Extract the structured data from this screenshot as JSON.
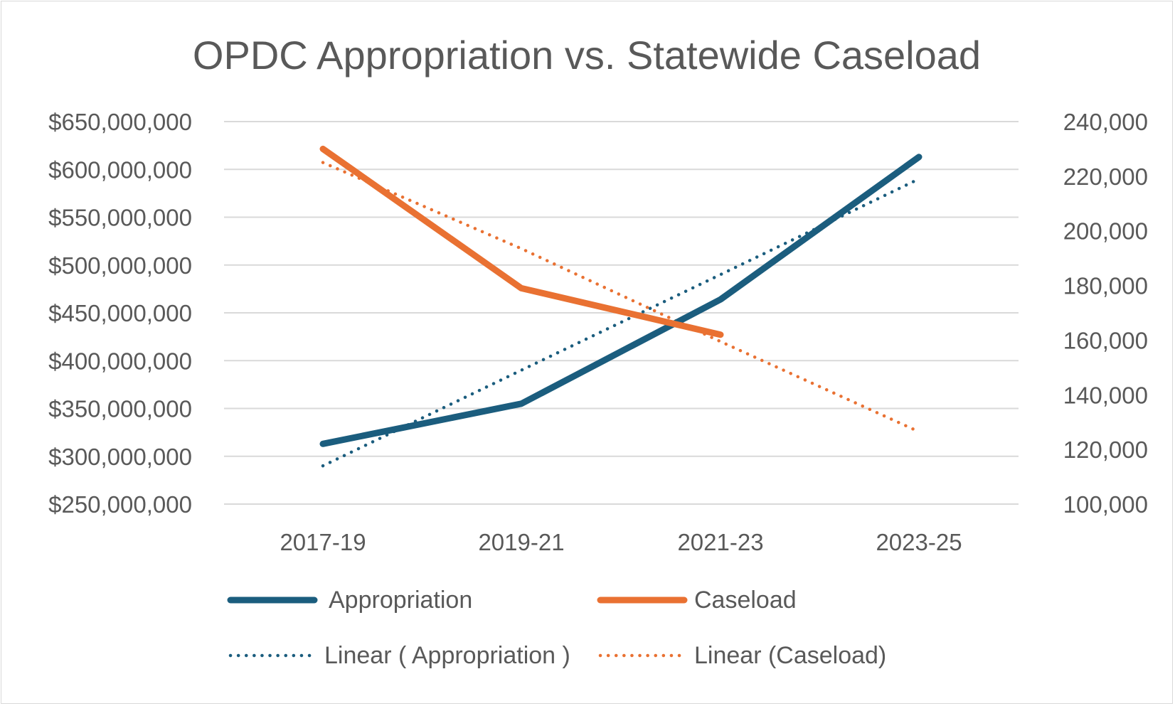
{
  "chart_data": {
    "type": "line",
    "title": "OPDC Appropriation vs. Statewide Caseload",
    "categories": [
      "2017-19",
      "2019-21",
      "2021-23",
      "2023-25"
    ],
    "y_left": {
      "range": [
        250000000,
        650000000
      ],
      "ticks": [
        250000000,
        300000000,
        350000000,
        400000000,
        450000000,
        500000000,
        550000000,
        600000000,
        650000000
      ],
      "tick_labels": [
        "$250,000,000",
        "$300,000,000",
        "$350,000,000",
        "$400,000,000",
        "$450,000,000",
        "$500,000,000",
        "$550,000,000",
        "$600,000,000",
        "$650,000,000"
      ]
    },
    "y_right": {
      "range": [
        100000,
        240000
      ],
      "ticks": [
        100000,
        120000,
        140000,
        160000,
        180000,
        200000,
        220000,
        240000
      ],
      "tick_labels": [
        "100,000",
        "120,000",
        "140,000",
        "160,000",
        "180,000",
        "200,000",
        "220,000",
        "240,000"
      ]
    },
    "grid": true,
    "legend_position": "bottom",
    "series": [
      {
        "name": "Appropriation",
        "axis": "left",
        "style": "solid",
        "color": "#1b5d7e",
        "values": [
          313000000,
          355000000,
          464000000,
          613000000
        ]
      },
      {
        "name": "Caseload",
        "axis": "right",
        "style": "solid",
        "color": "#e97132",
        "values": [
          230000,
          179000,
          162000,
          null
        ]
      },
      {
        "name": "Linear ( Appropriation )",
        "axis": "left",
        "style": "dotted",
        "color": "#1b5d7e",
        "values": [
          290000000,
          390000000,
          490000000,
          590000000
        ]
      },
      {
        "name": "Linear (Caseload)",
        "axis": "right",
        "style": "dotted",
        "color": "#e97132",
        "values": [
          225000,
          193500,
          159500,
          126500
        ]
      }
    ]
  }
}
